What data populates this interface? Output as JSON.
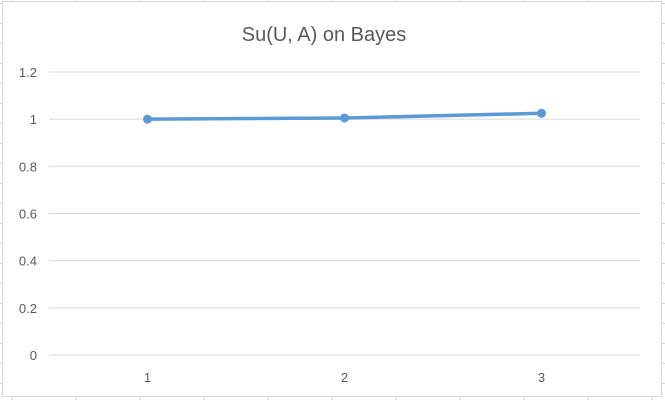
{
  "chart_data": {
    "type": "line",
    "title": "Su(U, A) on Bayes",
    "xlabel": "",
    "ylabel": "",
    "categories": [
      "1",
      "2",
      "3"
    ],
    "series": [
      {
        "values": [
          1.0,
          1.005,
          1.025
        ]
      }
    ],
    "ylim": [
      0,
      1.2
    ],
    "yticks": [
      "0",
      "0.2",
      "0.4",
      "0.6",
      "0.8",
      "1",
      "1.2"
    ],
    "grid": true,
    "legend": "none",
    "colors": {
      "series": "#5b9bd5",
      "grid": "#d9d9d9",
      "text": "#595959"
    }
  }
}
